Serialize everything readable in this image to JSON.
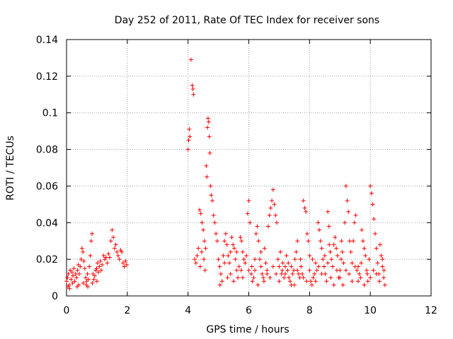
{
  "chart_data": {
    "type": "scatter",
    "title": "Day 252 of 2011, Rate Of TEC Index for receiver sons",
    "xlabel": "GPS time / hours",
    "ylabel": "ROTI / TECUs",
    "xlim": [
      0,
      12
    ],
    "ylim": [
      0,
      0.14
    ],
    "grid": true,
    "marker": "+",
    "color": "#ff0000",
    "x_ticks": [
      0,
      2,
      4,
      6,
      8,
      10,
      12
    ],
    "y_ticks": [
      0,
      0.02,
      0.04,
      0.06,
      0.08,
      0.1,
      0.12,
      0.14
    ],
    "x_tick_labels": [
      "0",
      "2",
      "4",
      "6",
      "8",
      "10",
      "12"
    ],
    "y_tick_labels": [
      "0",
      "0.02",
      "0.04",
      "0.06",
      "0.08",
      "0.1",
      "0.12",
      "0.14"
    ],
    "series": [
      {
        "name": "ROTI",
        "points": [
          [
            0.0,
            0.008
          ],
          [
            0.03,
            0.01
          ],
          [
            0.06,
            0.012
          ],
          [
            0.09,
            0.006
          ],
          [
            0.12,
            0.014
          ],
          [
            0.15,
            0.009
          ],
          [
            0.18,
            0.013
          ],
          [
            0.21,
            0.011
          ],
          [
            0.24,
            0.015
          ],
          [
            0.27,
            0.008
          ],
          [
            0.3,
            0.012
          ],
          [
            0.33,
            0.01
          ],
          [
            0.36,
            0.014
          ],
          [
            0.39,
            0.017
          ],
          [
            0.42,
            0.012
          ],
          [
            0.45,
            0.016
          ],
          [
            0.48,
            0.02
          ],
          [
            0.51,
            0.026
          ],
          [
            0.54,
            0.024
          ],
          [
            0.57,
            0.019
          ],
          [
            0.6,
            0.015
          ],
          [
            0.63,
            0.01
          ],
          [
            0.66,
            0.008
          ],
          [
            0.69,
            0.012
          ],
          [
            0.72,
            0.009
          ],
          [
            0.75,
            0.016
          ],
          [
            0.78,
            0.022
          ],
          [
            0.81,
            0.03
          ],
          [
            0.84,
            0.034
          ],
          [
            0.87,
            0.012
          ],
          [
            0.9,
            0.009
          ],
          [
            0.93,
            0.011
          ],
          [
            0.96,
            0.014
          ],
          [
            0.99,
            0.015
          ],
          [
            1.02,
            0.018
          ],
          [
            1.05,
            0.013
          ],
          [
            1.08,
            0.016
          ],
          [
            1.11,
            0.019
          ],
          [
            1.14,
            0.014
          ],
          [
            1.17,
            0.017
          ],
          [
            1.22,
            0.022
          ],
          [
            1.26,
            0.02
          ],
          [
            1.3,
            0.021
          ],
          [
            1.34,
            0.018
          ],
          [
            1.38,
            0.023
          ],
          [
            1.42,
            0.021
          ],
          [
            1.46,
            0.03
          ],
          [
            1.5,
            0.036
          ],
          [
            1.54,
            0.032
          ],
          [
            1.58,
            0.026
          ],
          [
            1.62,
            0.028
          ],
          [
            1.66,
            0.024
          ],
          [
            1.7,
            0.022
          ],
          [
            1.74,
            0.02
          ],
          [
            1.78,
            0.025
          ],
          [
            1.82,
            0.024
          ],
          [
            1.86,
            0.018
          ],
          [
            1.9,
            0.016
          ],
          [
            1.94,
            0.019
          ],
          [
            1.98,
            0.017
          ],
          [
            0.05,
            0.005
          ],
          [
            0.2,
            0.007
          ],
          [
            0.4,
            0.006
          ],
          [
            0.55,
            0.007
          ],
          [
            0.7,
            0.005
          ],
          [
            0.85,
            0.007
          ],
          [
            1.0,
            0.008
          ],
          [
            0.1,
            0.004
          ],
          [
            0.35,
            0.005
          ],
          [
            0.65,
            0.006
          ],
          [
            4.0,
            0.08
          ],
          [
            4.02,
            0.085
          ],
          [
            4.04,
            0.091
          ],
          [
            4.06,
            0.087
          ],
          [
            4.1,
            0.129
          ],
          [
            4.14,
            0.115
          ],
          [
            4.16,
            0.113
          ],
          [
            4.18,
            0.11
          ],
          [
            4.22,
            0.02
          ],
          [
            4.26,
            0.018
          ],
          [
            4.3,
            0.022
          ],
          [
            4.34,
            0.026
          ],
          [
            4.38,
            0.047
          ],
          [
            4.42,
            0.045
          ],
          [
            4.46,
            0.04
          ],
          [
            4.5,
            0.036
          ],
          [
            4.54,
            0.03
          ],
          [
            4.58,
            0.026
          ],
          [
            4.6,
            0.071
          ],
          [
            4.62,
            0.065
          ],
          [
            4.64,
            0.092
          ],
          [
            4.66,
            0.097
          ],
          [
            4.68,
            0.095
          ],
          [
            4.7,
            0.087
          ],
          [
            4.72,
            0.078
          ],
          [
            4.74,
            0.06
          ],
          [
            4.76,
            0.055
          ],
          [
            4.8,
            0.052
          ],
          [
            4.84,
            0.044
          ],
          [
            4.88,
            0.04
          ],
          [
            4.92,
            0.034
          ],
          [
            4.96,
            0.03
          ],
          [
            5.0,
            0.02
          ],
          [
            5.04,
            0.016
          ],
          [
            5.08,
            0.012
          ],
          [
            5.12,
            0.008
          ],
          [
            5.16,
            0.022
          ],
          [
            5.2,
            0.03
          ],
          [
            5.24,
            0.034
          ],
          [
            5.28,
            0.028
          ],
          [
            5.32,
            0.022
          ],
          [
            5.36,
            0.018
          ],
          [
            5.4,
            0.024
          ],
          [
            5.44,
            0.032
          ],
          [
            5.48,
            0.028
          ],
          [
            5.52,
            0.026
          ],
          [
            5.56,
            0.02
          ],
          [
            5.6,
            0.014
          ],
          [
            5.64,
            0.01
          ],
          [
            5.68,
            0.016
          ],
          [
            5.72,
            0.032
          ],
          [
            5.76,
            0.03
          ],
          [
            5.8,
            0.024
          ],
          [
            5.84,
            0.02
          ],
          [
            5.88,
            0.018
          ],
          [
            5.92,
            0.022
          ],
          [
            5.96,
            0.045
          ],
          [
            6.0,
            0.052
          ],
          [
            6.04,
            0.04
          ],
          [
            6.08,
            0.012
          ],
          [
            6.12,
            0.008
          ],
          [
            6.16,
            0.01
          ],
          [
            6.2,
            0.014
          ],
          [
            6.24,
            0.034
          ],
          [
            6.28,
            0.038
          ],
          [
            6.32,
            0.03
          ],
          [
            6.36,
            0.02
          ],
          [
            6.4,
            0.016
          ],
          [
            6.44,
            0.012
          ],
          [
            6.48,
            0.01
          ],
          [
            6.52,
            0.026
          ],
          [
            6.56,
            0.018
          ],
          [
            6.6,
            0.014
          ],
          [
            6.64,
            0.038
          ],
          [
            6.68,
            0.044
          ],
          [
            6.72,
            0.048
          ],
          [
            6.76,
            0.052
          ],
          [
            6.8,
            0.058
          ],
          [
            6.84,
            0.05
          ],
          [
            6.88,
            0.044
          ],
          [
            6.92,
            0.04
          ],
          [
            6.96,
            0.02
          ],
          [
            7.0,
            0.016
          ],
          [
            7.04,
            0.024
          ],
          [
            7.08,
            0.012
          ],
          [
            7.12,
            0.018
          ],
          [
            7.16,
            0.01
          ],
          [
            7.2,
            0.016
          ],
          [
            7.24,
            0.022
          ],
          [
            7.28,
            0.014
          ],
          [
            7.32,
            0.01
          ],
          [
            7.36,
            0.008
          ],
          [
            7.4,
            0.006
          ],
          [
            7.44,
            0.012
          ],
          [
            7.48,
            0.014
          ],
          [
            7.52,
            0.02
          ],
          [
            7.56,
            0.024
          ],
          [
            7.6,
            0.03
          ],
          [
            7.64,
            0.012
          ],
          [
            7.68,
            0.01
          ],
          [
            7.72,
            0.016
          ],
          [
            7.76,
            0.012
          ],
          [
            7.8,
            0.052
          ],
          [
            7.84,
            0.048
          ],
          [
            7.88,
            0.046
          ],
          [
            7.92,
            0.034
          ],
          [
            7.96,
            0.03
          ],
          [
            8.0,
            0.022
          ],
          [
            8.04,
            0.008
          ],
          [
            8.08,
            0.006
          ],
          [
            8.12,
            0.01
          ],
          [
            8.16,
            0.012
          ],
          [
            8.2,
            0.018
          ],
          [
            8.24,
            0.014
          ],
          [
            8.28,
            0.04
          ],
          [
            8.32,
            0.036
          ],
          [
            8.36,
            0.03
          ],
          [
            8.4,
            0.026
          ],
          [
            8.44,
            0.02
          ],
          [
            8.48,
            0.016
          ],
          [
            8.52,
            0.012
          ],
          [
            8.56,
            0.008
          ],
          [
            8.6,
            0.046
          ],
          [
            8.64,
            0.038
          ],
          [
            8.68,
            0.024
          ],
          [
            8.72,
            0.02
          ],
          [
            8.76,
            0.016
          ],
          [
            8.8,
            0.028
          ],
          [
            8.84,
            0.032
          ],
          [
            8.88,
            0.026
          ],
          [
            8.92,
            0.022
          ],
          [
            8.96,
            0.01
          ],
          [
            9.0,
            0.014
          ],
          [
            9.04,
            0.02
          ],
          [
            9.08,
            0.024
          ],
          [
            9.12,
            0.018
          ],
          [
            9.16,
            0.04
          ],
          [
            9.2,
            0.06
          ],
          [
            9.24,
            0.052
          ],
          [
            9.28,
            0.046
          ],
          [
            9.32,
            0.03
          ],
          [
            9.36,
            0.024
          ],
          [
            9.4,
            0.018
          ],
          [
            9.44,
            0.03
          ],
          [
            9.48,
            0.04
          ],
          [
            9.52,
            0.044
          ],
          [
            9.56,
            0.014
          ],
          [
            9.6,
            0.008
          ],
          [
            9.64,
            0.012
          ],
          [
            9.68,
            0.01
          ],
          [
            9.72,
            0.036
          ],
          [
            9.76,
            0.03
          ],
          [
            9.8,
            0.026
          ],
          [
            9.84,
            0.022
          ],
          [
            9.88,
            0.014
          ],
          [
            9.92,
            0.008
          ],
          [
            9.96,
            0.02
          ],
          [
            10.0,
            0.06
          ],
          [
            10.04,
            0.056
          ],
          [
            10.08,
            0.05
          ],
          [
            10.12,
            0.042
          ],
          [
            10.16,
            0.034
          ],
          [
            10.2,
            0.026
          ],
          [
            10.24,
            0.018
          ],
          [
            10.28,
            0.012
          ],
          [
            10.32,
            0.028
          ],
          [
            10.36,
            0.022
          ],
          [
            10.4,
            0.016
          ],
          [
            10.44,
            0.01
          ],
          [
            10.48,
            0.006
          ],
          [
            4.4,
            0.016
          ],
          [
            4.45,
            0.024
          ],
          [
            4.52,
            0.02
          ],
          [
            4.56,
            0.014
          ],
          [
            5.05,
            0.006
          ],
          [
            5.3,
            0.01
          ],
          [
            5.5,
            0.008
          ],
          [
            5.75,
            0.014
          ],
          [
            6.1,
            0.016
          ],
          [
            6.3,
            0.006
          ],
          [
            6.5,
            0.008
          ],
          [
            6.7,
            0.01
          ],
          [
            6.9,
            0.012
          ],
          [
            7.1,
            0.014
          ],
          [
            7.3,
            0.018
          ],
          [
            7.5,
            0.006
          ],
          [
            7.7,
            0.02
          ],
          [
            7.9,
            0.008
          ],
          [
            8.1,
            0.02
          ],
          [
            8.3,
            0.016
          ],
          [
            8.5,
            0.022
          ],
          [
            8.7,
            0.01
          ],
          [
            8.9,
            0.014
          ],
          [
            9.1,
            0.006
          ],
          [
            9.3,
            0.012
          ],
          [
            9.5,
            0.016
          ],
          [
            9.7,
            0.018
          ],
          [
            9.9,
            0.012
          ],
          [
            10.1,
            0.014
          ],
          [
            10.3,
            0.008
          ],
          [
            5.2,
            0.018
          ],
          [
            5.4,
            0.012
          ],
          [
            5.6,
            0.024
          ],
          [
            5.8,
            0.01
          ],
          [
            6.0,
            0.014
          ],
          [
            6.2,
            0.02
          ],
          [
            6.4,
            0.024
          ],
          [
            6.6,
            0.012
          ],
          [
            6.8,
            0.016
          ],
          [
            7.0,
            0.008
          ],
          [
            7.2,
            0.012
          ],
          [
            7.4,
            0.016
          ],
          [
            7.6,
            0.014
          ],
          [
            7.8,
            0.01
          ],
          [
            8.0,
            0.014
          ],
          [
            8.2,
            0.008
          ],
          [
            8.4,
            0.012
          ],
          [
            8.6,
            0.018
          ],
          [
            8.8,
            0.006
          ],
          [
            9.0,
            0.01
          ],
          [
            9.2,
            0.014
          ],
          [
            9.4,
            0.008
          ],
          [
            9.6,
            0.016
          ],
          [
            9.8,
            0.006
          ],
          [
            10.0,
            0.01
          ],
          [
            10.2,
            0.012
          ],
          [
            10.4,
            0.02
          ],
          [
            10.45,
            0.014
          ],
          [
            8.65,
            0.028
          ],
          [
            9.05,
            0.03
          ]
        ]
      }
    ]
  }
}
